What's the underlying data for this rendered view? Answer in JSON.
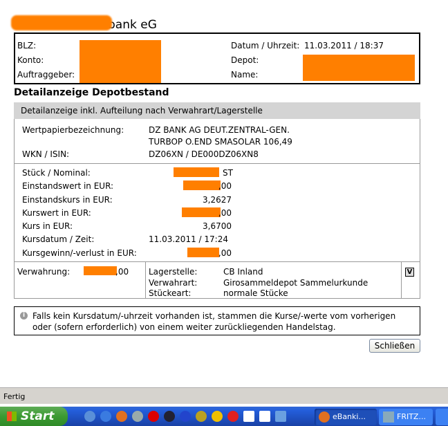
{
  "bank": {
    "name_visible": "bank eG"
  },
  "header": {
    "blz_label": "BLZ:",
    "konto_label": "Konto:",
    "auftraggeber_label": "Auftraggeber:",
    "datum_label": "Datum / Uhrzeit:",
    "datum_value": "11.03.2011 / 18:37",
    "depot_label": "Depot:",
    "name_label": "Name:"
  },
  "page_title": "Detailanzeige Depotbestand",
  "section_title": "Detailanzeige inkl. Aufteilung nach Verwahrart/Lagerstelle",
  "security": {
    "bez_label": "Wertpapierbezeichnung:",
    "bez_line1": "DZ BANK AG DEUT.ZENTRAL-GEN.",
    "bez_line2": "TURBOP O.END SMASOLAR 106,49",
    "wkn_label": "WKN / ISIN:",
    "wkn_value": "DZ06XN / DE000DZ06XN8"
  },
  "rows": [
    {
      "label": "Stück / Nominal:",
      "value": "ST"
    },
    {
      "label": "Einstandswert in EUR:",
      "value": ",00"
    },
    {
      "label": "Einstandskurs in EUR:",
      "value": "3,2627"
    },
    {
      "label": "Kurswert in EUR:",
      "value": ",00"
    },
    {
      "label": "Kurs in EUR:",
      "value": "3,6700"
    },
    {
      "label": "Kursdatum / Zeit:",
      "value": "11.03.2011 / 17:24"
    },
    {
      "label": "Kursgewinn/-verlust in EUR:",
      "value": ",00"
    }
  ],
  "custody": {
    "verwahrung_label": "Verwahrung:",
    "verwahrung_value": ",00",
    "lagerstelle_label": "Lagerstelle:",
    "lagerstelle_value": "CB Inland",
    "verwahrart_label": "Verwahrart:",
    "verwahrart_value": "Girosammeldepot Sammelurkunde",
    "stueckeart_label": "Stückeart:",
    "stueckeart_value": "normale Stücke",
    "v_button": "V"
  },
  "info_text": "Falls kein Kursdatum/-uhrzeit vorhanden ist, stammen die Kurse/-werte vom vorherigen oder (sofern erforderlich) von einem weiter zurückliegenden Handelstag.",
  "close_button": "Schließen",
  "status_bar": "Fertig",
  "taskbar": {
    "start": "Start",
    "tasks": [
      "eBanki...",
      "FRITZ..."
    ]
  },
  "colors": {
    "redaction": "#ff7f00",
    "section_bg": "#d4d4d4"
  }
}
